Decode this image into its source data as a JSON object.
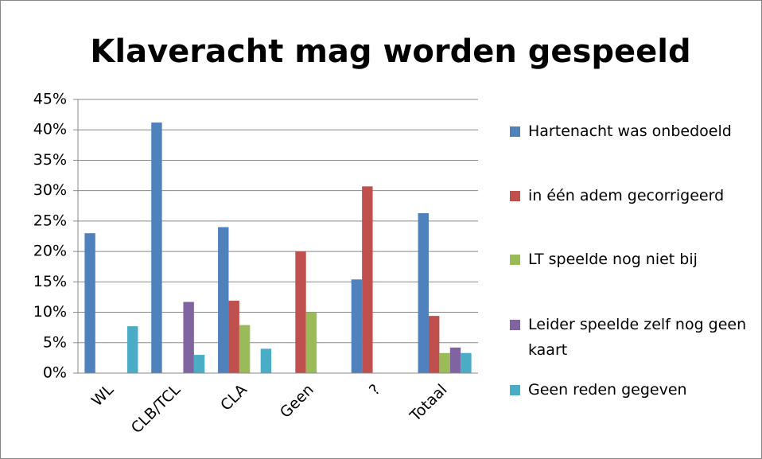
{
  "chart_data": {
    "type": "bar",
    "title": "Klaveracht mag worden gespeeld",
    "categories": [
      "WL",
      "CLB/TCL",
      "CLA",
      "Geen",
      "?",
      "Totaal"
    ],
    "series": [
      {
        "name": "Hartenacht was onbedoeld",
        "color": "#4f81bd",
        "values": [
          23,
          41.2,
          24,
          0,
          15.4,
          26.3
        ]
      },
      {
        "name": "in één adem gecorrigeerd",
        "color": "#c0504d",
        "values": [
          0,
          0,
          11.9,
          20,
          30.7,
          9.4
        ]
      },
      {
        "name": "LT speelde nog niet bij",
        "color": "#9bbb59",
        "values": [
          0,
          0,
          7.9,
          10,
          0,
          3.3
        ]
      },
      {
        "name": "Leider speelde zelf nog geen kaart",
        "color": "#8064a2",
        "values": [
          0,
          11.7,
          0,
          0,
          0,
          4.2
        ]
      },
      {
        "name": "Geen reden gegeven",
        "color": "#4bacc6",
        "values": [
          7.7,
          3,
          4,
          0,
          0,
          3.3
        ]
      }
    ],
    "ylim": [
      0,
      45
    ],
    "yticks": [
      {
        "value": 0,
        "label": "0%"
      },
      {
        "value": 5,
        "label": "5%"
      },
      {
        "value": 10,
        "label": "10%"
      },
      {
        "value": 15,
        "label": "15%"
      },
      {
        "value": 20,
        "label": "20%"
      },
      {
        "value": 25,
        "label": "25%"
      },
      {
        "value": 30,
        "label": "30%"
      },
      {
        "value": 35,
        "label": "35%"
      },
      {
        "value": 40,
        "label": "40%"
      },
      {
        "value": 45,
        "label": "45%"
      }
    ],
    "grid": true,
    "legend": "right"
  }
}
